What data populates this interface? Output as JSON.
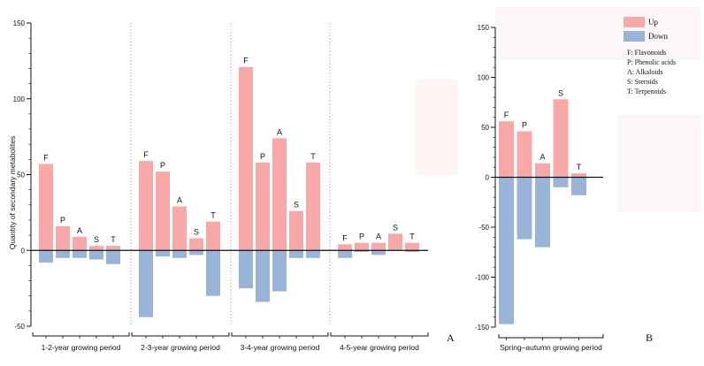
{
  "chart_data": [
    {
      "panel": "A",
      "type": "bar",
      "ylabel": "Quantity of secondary metabolites",
      "ylim": [
        -50,
        150
      ],
      "yticks": [
        -50,
        0,
        50,
        100,
        150
      ],
      "groups": [
        {
          "name": "1-2-year growing period",
          "bars": [
            {
              "label": "F",
              "up": 57,
              "down": -8
            },
            {
              "label": "P",
              "up": 16,
              "down": -5
            },
            {
              "label": "A",
              "up": 9,
              "down": -5
            },
            {
              "label": "S",
              "up": 3,
              "down": -6
            },
            {
              "label": "T",
              "up": 3,
              "down": -9
            }
          ]
        },
        {
          "name": "2-3-year growing period",
          "bars": [
            {
              "label": "F",
              "up": 59,
              "down": -44
            },
            {
              "label": "P",
              "up": 52,
              "down": -4
            },
            {
              "label": "A",
              "up": 29,
              "down": -5
            },
            {
              "label": "S",
              "up": 8,
              "down": -3
            },
            {
              "label": "T",
              "up": 19,
              "down": -30
            }
          ]
        },
        {
          "name": "3-4-year growing period",
          "bars": [
            {
              "label": "F",
              "up": 121,
              "down": -25
            },
            {
              "label": "P",
              "up": 58,
              "down": -34
            },
            {
              "label": "A",
              "up": 74,
              "down": -27
            },
            {
              "label": "S",
              "up": 26,
              "down": -5
            },
            {
              "label": "T",
              "up": 58,
              "down": -5
            }
          ]
        },
        {
          "name": "4-5-year growing period",
          "bars": [
            {
              "label": "F",
              "up": 4,
              "down": -5
            },
            {
              "label": "P",
              "up": 5,
              "down": -1
            },
            {
              "label": "A",
              "up": 5,
              "down": -3
            },
            {
              "label": "S",
              "up": 11,
              "down": 0
            },
            {
              "label": "T",
              "up": 5,
              "down": -1
            }
          ]
        }
      ]
    },
    {
      "panel": "B",
      "type": "bar",
      "ylim": [
        -150,
        150
      ],
      "yticks": [
        -150,
        -100,
        -50,
        0,
        50,
        100,
        150
      ],
      "groups": [
        {
          "name": "Spring–autumn growing period",
          "bars": [
            {
              "label": "F",
              "up": 56,
              "down": -147
            },
            {
              "label": "P",
              "up": 46,
              "down": -62
            },
            {
              "label": "A",
              "up": 14,
              "down": -70
            },
            {
              "label": "S",
              "up": 78,
              "down": -10
            },
            {
              "label": "T",
              "up": 4,
              "down": -18
            }
          ]
        }
      ]
    }
  ],
  "legend": {
    "items": [
      {
        "name": "Up",
        "color": "#f7a8a8"
      },
      {
        "name": "Down",
        "color": "#9ab4d8"
      }
    ],
    "abbreviations": [
      "F: Flavonoids",
      "P: Phenolic acids",
      "A: Alkaloids",
      "S: Steroids",
      "T: Terpenoids"
    ]
  },
  "colors": {
    "up": "#f7a8a8",
    "down": "#9ab4d8"
  }
}
